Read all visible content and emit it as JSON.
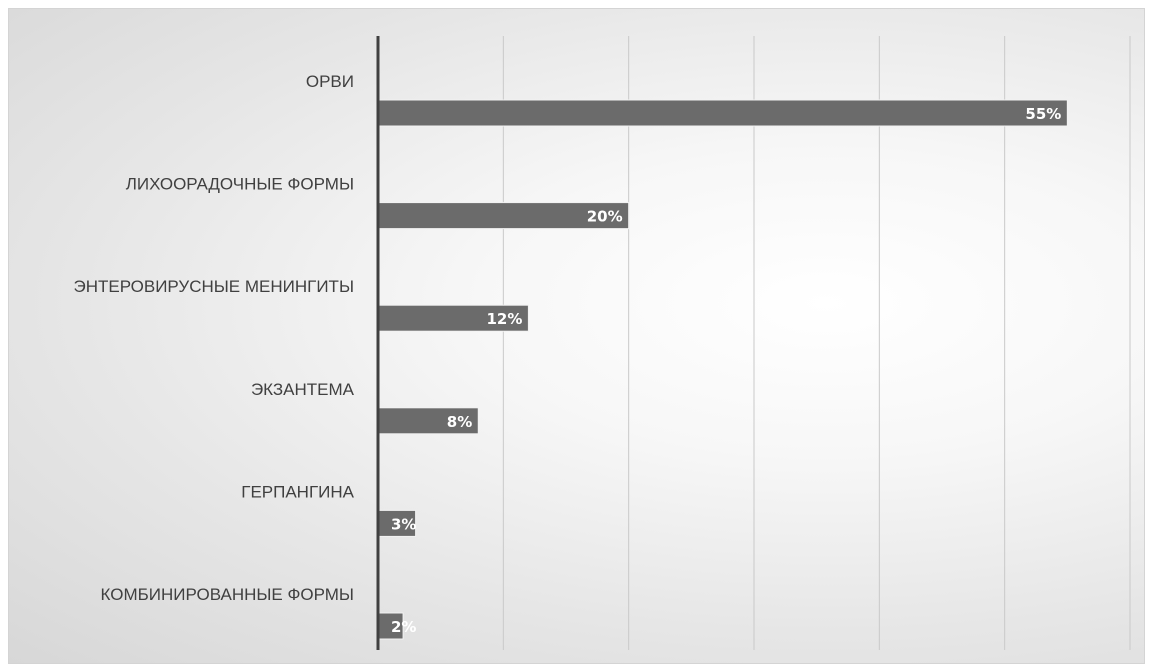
{
  "chart_data": {
    "type": "bar",
    "orientation": "horizontal",
    "title": "",
    "xlabel": "",
    "ylabel": "",
    "categories": [
      "ОРВИ",
      "ЛИХООРАДОЧНЫЕ ФОРМЫ",
      "ЭНТЕРОВИРУСНЫЕ МЕНИНГИТЫ",
      "ЭКЗАНТЕМА",
      "ГЕРПАНГИНА",
      "КОМБИНИРОВАННЫЕ ФОРМЫ"
    ],
    "values": [
      55,
      20,
      12,
      8,
      3,
      2
    ],
    "value_labels": [
      "55%",
      "20%",
      "12%",
      "8%",
      "3%",
      "2%"
    ],
    "unit": "%",
    "xlim": [
      0,
      60
    ],
    "gridlines": "vertical",
    "legend": "none",
    "colors": {
      "bar": "#6b6b6b",
      "bar_edge": "#f2f2f2",
      "axis": "#404040",
      "grid": "#c9c9c9",
      "category_text": "#404040",
      "value_text": "#ffffff"
    }
  }
}
